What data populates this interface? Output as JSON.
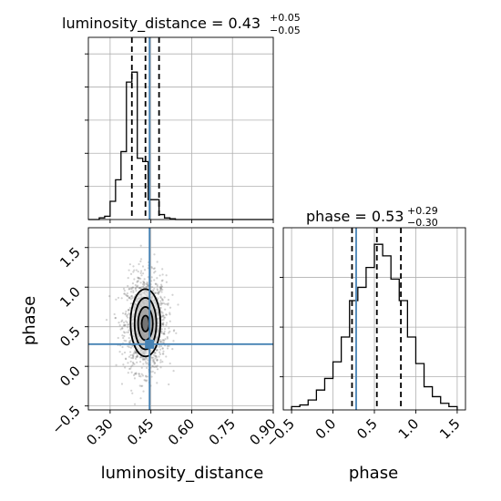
{
  "chart_data": {
    "type": "corner",
    "colors": {
      "truth": "#4682b4",
      "hist": "#000000",
      "grid": "#b0b0b0",
      "scatter": "#7f7f7f"
    },
    "parameters": [
      {
        "name": "luminosity_distance",
        "median": "0.43",
        "plus": "+0.05",
        "minus": "−0.05",
        "title_prefix": "luminosity_distance = "
      },
      {
        "name": "phase",
        "median": "0.53",
        "plus": "+0.29",
        "minus": "−0.30",
        "title_prefix": "phase = "
      }
    ],
    "x_axis_labels": [
      "luminosity_distance",
      "phase"
    ],
    "y_axis_labels": [
      "phase"
    ],
    "panels": [
      {
        "id": "hist-luminosity_distance",
        "type": "histogram",
        "xlim": [
          0.22,
          0.9
        ],
        "ymax": 1.1,
        "bin_edges": [
          0.22,
          0.24,
          0.26,
          0.28,
          0.3,
          0.32,
          0.34,
          0.36,
          0.38,
          0.4,
          0.42,
          0.44,
          0.46,
          0.48,
          0.5,
          0.52,
          0.54,
          0.56,
          0.58,
          0.6,
          0.62,
          0.64,
          0.66,
          0.68,
          0.7,
          0.72,
          0.74,
          0.76,
          0.78,
          0.8,
          0.82,
          0.84,
          0.86,
          0.88,
          0.9
        ],
        "counts": [
          0,
          0,
          0.01,
          0.02,
          0.11,
          0.24,
          0.41,
          0.83,
          0.89,
          0.37,
          0.35,
          0.12,
          0.12,
          0.03,
          0.01,
          0.005,
          0,
          0,
          0,
          0,
          0,
          0,
          0,
          0,
          0,
          0,
          0,
          0,
          0,
          0,
          0,
          0,
          0,
          0
        ],
        "quantiles": [
          0.38,
          0.43,
          0.48
        ],
        "truth": 0.445
      },
      {
        "id": "hist-phase",
        "type": "histogram",
        "xlim": [
          -0.6,
          1.6
        ],
        "ymax": 1.1,
        "bin_edges": [
          -0.5,
          -0.4,
          -0.3,
          -0.2,
          -0.1,
          0.0,
          0.1,
          0.2,
          0.3,
          0.4,
          0.5,
          0.6,
          0.7,
          0.8,
          0.9,
          1.0,
          1.1,
          1.2,
          1.3,
          1.4,
          1.5
        ],
        "counts": [
          0.02,
          0.03,
          0.06,
          0.12,
          0.19,
          0.29,
          0.44,
          0.66,
          0.74,
          0.86,
          1.0,
          0.93,
          0.79,
          0.66,
          0.44,
          0.28,
          0.14,
          0.08,
          0.04,
          0.02
        ],
        "quantiles": [
          0.23,
          0.53,
          0.82
        ],
        "truth": 0.28
      },
      {
        "id": "scatter-luminosity_distance-phase",
        "type": "contour",
        "xlim": [
          0.22,
          0.9
        ],
        "ylim": [
          -0.55,
          1.75
        ],
        "center": [
          0.43,
          0.53
        ],
        "contours": [
          {
            "sx": 0.055,
            "sy": 0.85,
            "cy": 0.55,
            "fill": 0.1
          },
          {
            "sx": 0.04,
            "sy": 0.65,
            "cy": 0.54,
            "fill": 0.25
          },
          {
            "sx": 0.027,
            "sy": 0.42,
            "cy": 0.54,
            "fill": 0.45
          },
          {
            "sx": 0.014,
            "sy": 0.2,
            "cy": 0.54,
            "fill": 0.7
          }
        ],
        "truth": [
          0.445,
          0.28
        ]
      }
    ],
    "x_ticks": {
      "luminosity_distance": [
        "0.30",
        "0.45",
        "0.60",
        "0.75",
        "0.90"
      ],
      "phase": [
        "−0.5",
        "0.0",
        "0.5",
        "1.0",
        "1.5"
      ]
    },
    "y_ticks": {
      "phase": [
        "−0.5",
        "0.0",
        "0.5",
        "1.0",
        "1.5"
      ]
    }
  }
}
